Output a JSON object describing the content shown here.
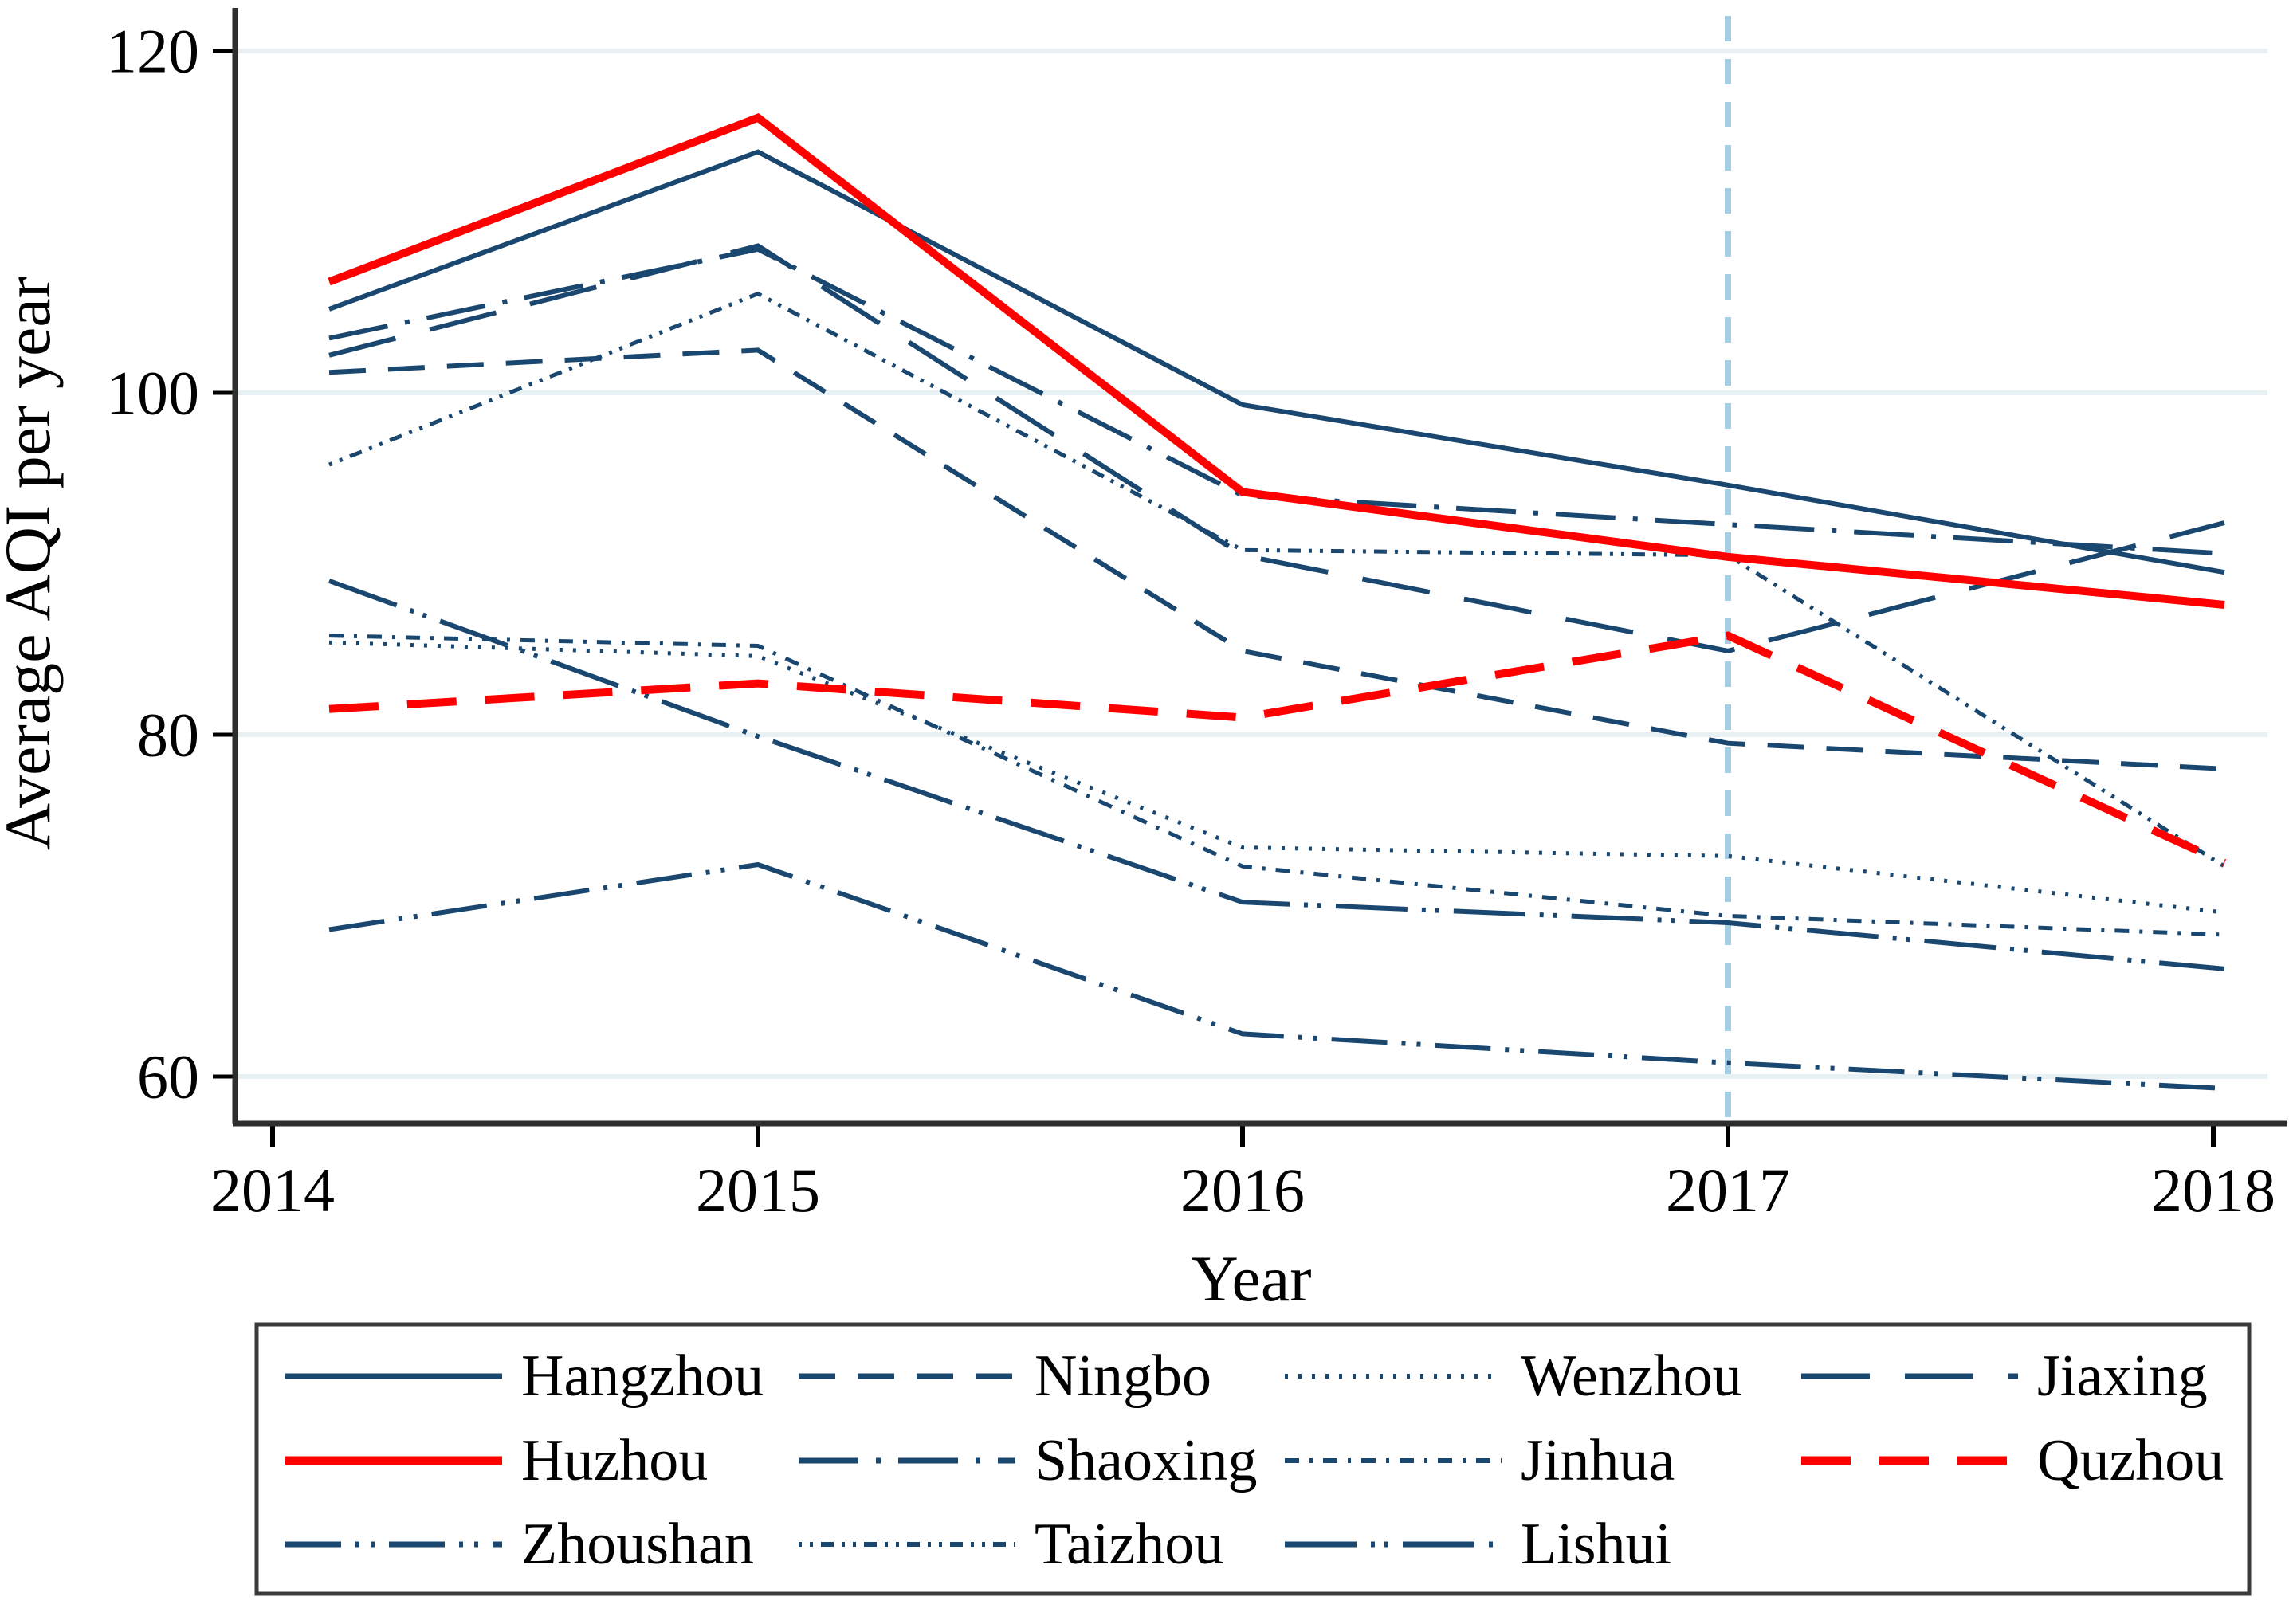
{
  "figure": {
    "y_axis_title": "Average AQI per year",
    "x_axis_title": "Year",
    "background_color": "#ffffff",
    "navy_color": "#1a476f",
    "red_color": "#fe0000",
    "gridline_color": "#e7f0f3",
    "axis_color": "#2e2e2e",
    "reference_line_color": "#a6cee3"
  },
  "chart_data": {
    "type": "line",
    "x": [
      2014,
      2015,
      2016,
      2017,
      2018
    ],
    "xticks": [
      "2014",
      "2015",
      "2016",
      "2017",
      "2018"
    ],
    "yticks": [
      "60",
      "80",
      "100",
      "120"
    ],
    "ytick_values": [
      60,
      80,
      100,
      120
    ],
    "xlabel": "Year",
    "ylabel": "Average AQI per year",
    "ylim": [
      57,
      123
    ],
    "grid": "horizontal",
    "legend_position": "bottom-box",
    "reference_line": {
      "x": 2017,
      "style": "dashed",
      "color": "#a6cee3"
    },
    "series": [
      {
        "name": "Hangzhou",
        "color": "#1a476f",
        "pattern": "solid",
        "dash": "",
        "width": 5,
        "values": [
          104.9,
          114.1,
          99.3,
          94.6,
          89.5
        ]
      },
      {
        "name": "Ningbo",
        "color": "#1a476f",
        "pattern": "dash",
        "dash": "46 28",
        "width": 5,
        "values": [
          101.2,
          102.5,
          84.9,
          79.5,
          78.0
        ]
      },
      {
        "name": "Wenzhou",
        "color": "#1a476f",
        "pattern": "dot",
        "dash": "4 13",
        "width": 4,
        "values": [
          85.4,
          84.6,
          73.4,
          72.9,
          69.6
        ]
      },
      {
        "name": "Jiaxing",
        "color": "#1a476f",
        "pattern": "longdash",
        "dash": "86 44",
        "width": 5,
        "values": [
          102.2,
          108.6,
          90.5,
          84.9,
          92.4
        ]
      },
      {
        "name": "Huzhou",
        "color": "#fe0000",
        "pattern": "solid",
        "dash": "",
        "width": 9,
        "values": [
          106.5,
          116.1,
          94.2,
          90.4,
          87.6
        ]
      },
      {
        "name": "Shaoxing",
        "color": "#1a476f",
        "pattern": "dash-dot",
        "dash": "75 22 6 22",
        "width": 5,
        "values": [
          103.2,
          108.4,
          94.0,
          92.3,
          90.6
        ]
      },
      {
        "name": "Jinhua",
        "color": "#1a476f",
        "pattern": "shortdash-dot",
        "dash": "18 13 4 13",
        "width": 4,
        "values": [
          85.8,
          85.2,
          72.3,
          69.4,
          68.3
        ]
      },
      {
        "name": "Quzhou",
        "color": "#fe0000",
        "pattern": "dash",
        "dash": "62 36",
        "width": 9,
        "values": [
          81.5,
          83.0,
          81.0,
          85.8,
          72.5
        ]
      },
      {
        "name": "Zhoushan",
        "color": "#1a476f",
        "pattern": "dash-dot-dot",
        "dash": "70 18 5 14 5 18",
        "width": 5,
        "values": [
          68.6,
          72.4,
          62.5,
          60.8,
          59.3
        ]
      },
      {
        "name": "Taizhou",
        "color": "#1a476f",
        "pattern": "dot-dot-dash",
        "dash": "4 10 4 10 16 10",
        "width": 4,
        "values": [
          95.8,
          105.8,
          90.8,
          90.5,
          72.3
        ]
      },
      {
        "name": "Lishui",
        "color": "#1a476f",
        "pattern": "longdash-dot-dot",
        "dash": "90 18 5 12 5 18",
        "width": 5,
        "values": [
          89.0,
          79.9,
          70.2,
          69.0,
          66.3
        ]
      }
    ],
    "legend_rows": [
      [
        "Hangzhou",
        "Ningbo",
        "Wenzhou",
        "Jiaxing"
      ],
      [
        "Huzhou",
        "Shaoxing",
        "Jinhua",
        "Quzhou"
      ],
      [
        "Zhoushan",
        "Taizhou",
        "Lishui"
      ]
    ]
  }
}
